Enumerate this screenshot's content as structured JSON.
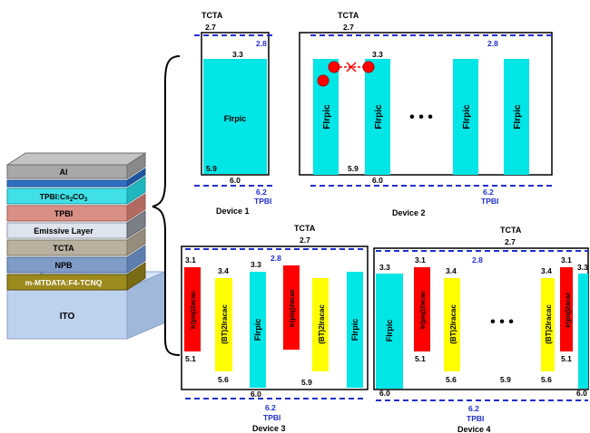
{
  "stack": {
    "layers": [
      "Al",
      "TPBI:Cs2CO3",
      "TPBI",
      "Emissive Layer",
      "TCTA",
      "NPB",
      "m-MTDATA:F4-TCNQ",
      "ITO"
    ],
    "cs_main": "TPBI:Cs",
    "cs_sub1": "2",
    "cs_mid": "CO",
    "cs_sub2": "3"
  },
  "common": {
    "tcta": "TCTA",
    "tpbi": "TPBI",
    "lumo_tcta": "2.7",
    "lumo_tpbi": "2.8",
    "homo_tcta": "5.9",
    "homo_tpbi": "6.2",
    "firpic": "FIrpic",
    "firpic_lumo": "3.3",
    "firpic_homo": "6.0",
    "ir_red": "Ir(piq)2acac",
    "ir_red_lumo": "3.1",
    "ir_red_homo": "5.1",
    "bt_yellow": "(BT)2Iracac",
    "bt_lumo": "3.4",
    "bt_homo": "5.6",
    "dots": "•  •  •"
  },
  "devices": {
    "d1": "Device 1",
    "d2": "Device 2",
    "d3": "Device 3",
    "d4": "Device 4"
  },
  "colors": {
    "firpic": "#00e5e5",
    "red": "#ff0000",
    "yellow": "#ffff00",
    "dash": "#1f2fd0"
  }
}
